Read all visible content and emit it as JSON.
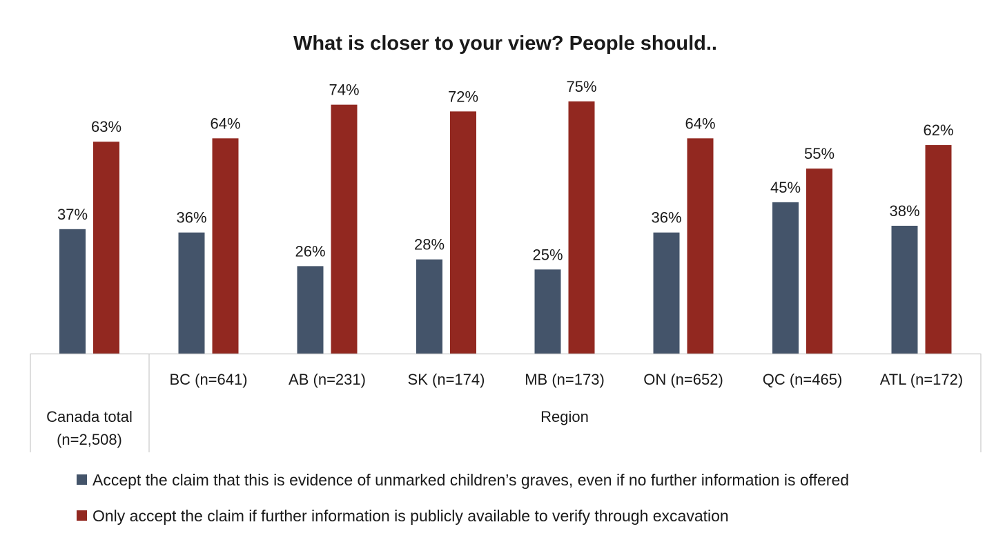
{
  "chart_data": {
    "type": "bar",
    "title": "What is closer to your view? People should..",
    "categories": [
      "Canada total (n=2,508)",
      "BC (n=641)",
      "AB (n=231)",
      "SK (n=174)",
      "MB (n=173)",
      "ON (n=652)",
      "QC (n=465)",
      "ATL (n=172)"
    ],
    "category_lines": [
      [
        "Canada total",
        "(n=2,508)"
      ],
      [
        "BC (n=641)"
      ],
      [
        "AB (n=231)"
      ],
      [
        "SK (n=174)"
      ],
      [
        "MB (n=173)"
      ],
      [
        "ON (n=652)"
      ],
      [
        "QC (n=465)"
      ],
      [
        "ATL (n=172)"
      ]
    ],
    "group_label": "Region",
    "series": [
      {
        "name": "Accept the claim that this is evidence of unmarked children’s graves, even if no further information is offered",
        "color": "#44546a",
        "values": [
          37,
          36,
          26,
          28,
          25,
          36,
          45,
          38
        ],
        "labels": [
          "37%",
          "36%",
          "26%",
          "28%",
          "25%",
          "36%",
          "45%",
          "38%"
        ]
      },
      {
        "name": "Only accept the claim if further information is publicly available to verify through excavation",
        "color": "#922820",
        "values": [
          63,
          64,
          74,
          72,
          75,
          64,
          55,
          62
        ],
        "labels": [
          "63%",
          "64%",
          "74%",
          "72%",
          "75%",
          "64%",
          "55%",
          "62%"
        ]
      }
    ],
    "ylim": [
      0,
      100
    ],
    "xlabel": "",
    "ylabel": "",
    "grid": false,
    "legend_position": "bottom"
  }
}
